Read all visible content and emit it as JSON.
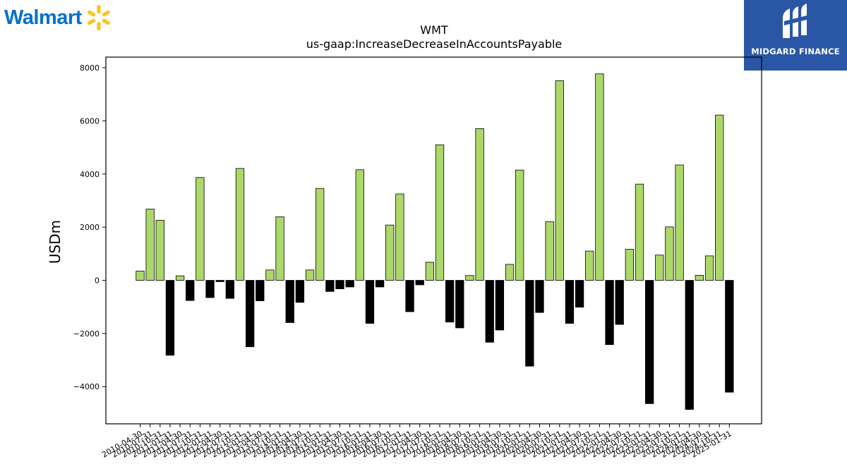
{
  "logos": {
    "walmart_text": "Walmart",
    "walmart_color": "#0071ce",
    "spark_color": "#ffc220",
    "brand_name": "MIDGARD FINANCE",
    "brand_bg": "#2a57a5"
  },
  "chart_data": {
    "type": "bar",
    "title": "WMT",
    "subtitle": "us-gaap:IncreaseDecreaseInAccountsPayable",
    "xlabel": "",
    "ylabel": "USDm",
    "ylim": [
      -5400,
      8400
    ],
    "yticks": [
      -4000,
      -2000,
      0,
      2000,
      4000,
      6000,
      8000
    ],
    "grid": false,
    "colors": {
      "positive": "#acd86a",
      "negative": "#000000",
      "edge": "#000000"
    },
    "categories": [
      "2010-04-30",
      "2010-07-31",
      "2010-10-31",
      "2011-01-31",
      "2011-04-30",
      "2011-07-31",
      "2011-10-31",
      "2012-01-31",
      "2012-04-30",
      "2012-07-31",
      "2012-10-31",
      "2013-01-31",
      "2013-04-30",
      "2013-07-31",
      "2013-10-31",
      "2014-01-31",
      "2014-04-30",
      "2014-07-31",
      "2014-10-31",
      "2015-01-31",
      "2015-04-30",
      "2015-07-31",
      "2015-10-31",
      "2016-01-31",
      "2016-04-30",
      "2016-07-31",
      "2016-10-31",
      "2017-01-31",
      "2017-04-30",
      "2017-07-31",
      "2017-10-31",
      "2018-01-31",
      "2018-04-30",
      "2018-07-31",
      "2018-10-31",
      "2019-01-31",
      "2019-04-30",
      "2019-07-31",
      "2019-10-31",
      "2020-01-31",
      "2020-04-30",
      "2020-07-31",
      "2020-10-31",
      "2021-01-31",
      "2021-04-30",
      "2021-07-31",
      "2021-10-31",
      "2022-01-31",
      "2022-04-30",
      "2022-07-31",
      "2022-10-31",
      "2023-01-31",
      "2023-04-30",
      "2023-07-31",
      "2023-10-31",
      "2024-01-31",
      "2024-04-30",
      "2024-07-31",
      "2024-10-31",
      "2025-01-31"
    ],
    "values": [
      350,
      2680,
      2260,
      -2820,
      170,
      -760,
      3870,
      -650,
      -50,
      -680,
      4210,
      -2500,
      -770,
      390,
      2390,
      -1590,
      -830,
      390,
      3460,
      -420,
      -320,
      -250,
      4160,
      -1620,
      -250,
      2080,
      3250,
      -1180,
      -170,
      680,
      5100,
      -1570,
      -1790,
      180,
      5710,
      -2330,
      -1870,
      600,
      4150,
      -3230,
      -1210,
      2210,
      7510,
      -1620,
      -1010,
      1100,
      7770,
      -2420,
      -1660,
      1170,
      3620,
      -4640,
      950,
      2010,
      4340,
      -4860,
      190,
      920,
      6220,
      -4210
    ]
  }
}
